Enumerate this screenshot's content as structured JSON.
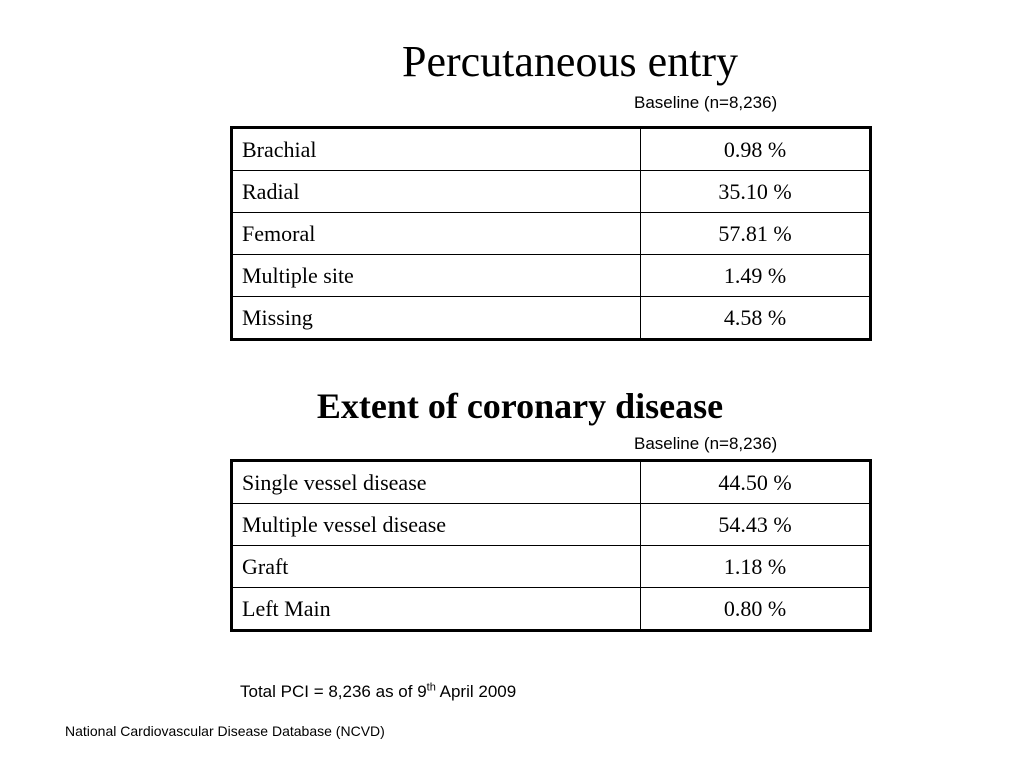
{
  "section1": {
    "title": "Percutaneous entry",
    "caption": "Baseline (n=8,236)",
    "rows": [
      {
        "label": "Brachial",
        "value": "0.98 %"
      },
      {
        "label": "Radial",
        "value": "35.10 %"
      },
      {
        "label": "Femoral",
        "value": "57.81 %"
      },
      {
        "label": "Multiple site",
        "value": "1.49 %"
      },
      {
        "label": "Missing",
        "value": "4.58 %"
      }
    ]
  },
  "section2": {
    "title": "Extent of coronary disease",
    "caption": "Baseline (n=8,236)",
    "rows": [
      {
        "label": "Single vessel disease",
        "value": "44.50 %"
      },
      {
        "label": "Multiple vessel disease",
        "value": "54.43 %"
      },
      {
        "label": "Graft",
        "value": "1.18 %"
      },
      {
        "label": "Left Main",
        "value": "0.80 %"
      }
    ]
  },
  "total": {
    "prefix": "Total PCI = 8,236 as of  9",
    "superscript": "th",
    "suffix": " April 2009"
  },
  "footer": "National Cardiovascular Disease Database (NCVD)"
}
